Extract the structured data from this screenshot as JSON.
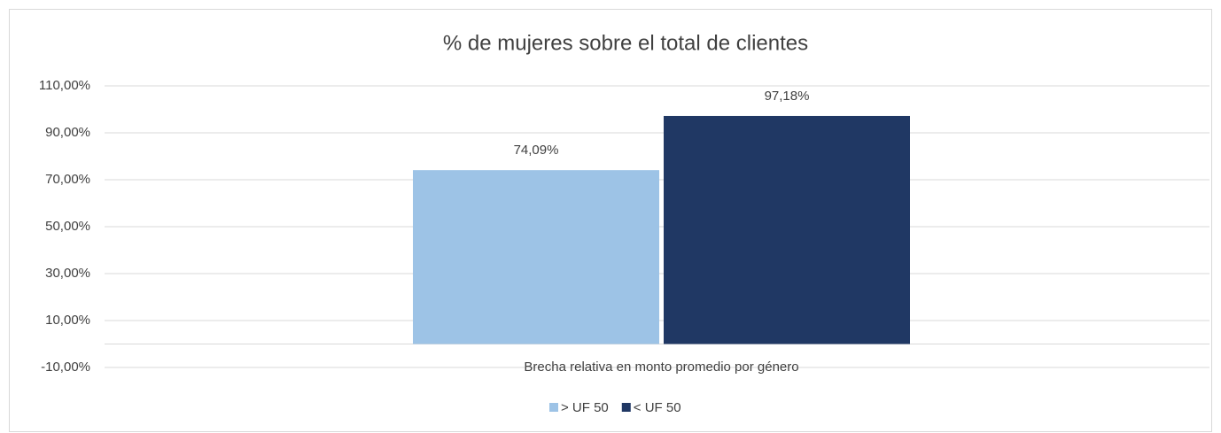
{
  "chart_data": {
    "type": "bar",
    "title": "% de mujeres sobre el total de clientes",
    "categories": [
      "Brecha relativa en monto promedio por género"
    ],
    "series": [
      {
        "name": "> UF 50",
        "color": "#9dc3e6",
        "values": [
          74.09
        ],
        "value_labels": [
          "74,09%"
        ]
      },
      {
        "name": "< UF 50",
        "color": "#203864",
        "values": [
          97.18
        ],
        "value_labels": [
          "97,18%"
        ]
      }
    ],
    "ylim": [
      -10,
      110
    ],
    "yticks": [
      {
        "value": -10,
        "label": "-10,00%"
      },
      {
        "value": 10,
        "label": "10,00%"
      },
      {
        "value": 30,
        "label": "30,00%"
      },
      {
        "value": 50,
        "label": "50,00%"
      },
      {
        "value": 70,
        "label": "70,00%"
      },
      {
        "value": 90,
        "label": "90,00%"
      },
      {
        "value": 110,
        "label": "110,00%"
      }
    ],
    "grid": true,
    "legend": "bottom"
  }
}
